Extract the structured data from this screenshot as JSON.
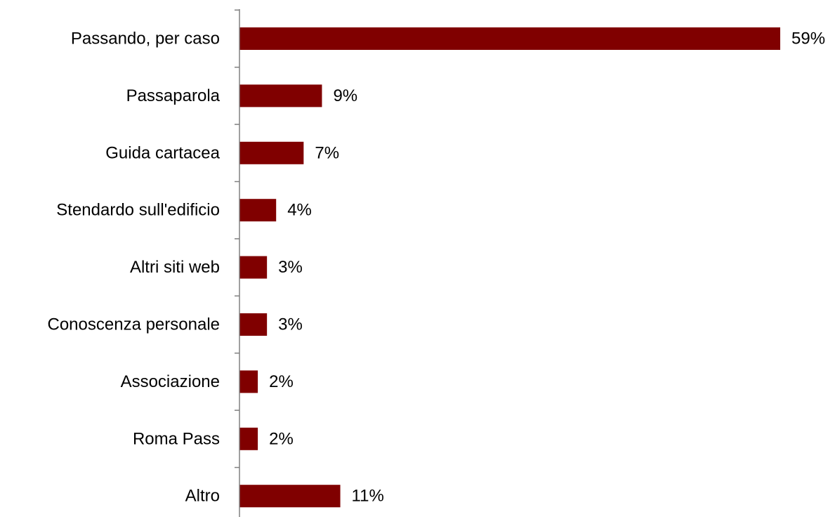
{
  "chart_data": {
    "type": "bar",
    "orientation": "horizontal",
    "categories": [
      "Passando, per caso",
      "Passaparola",
      "Guida cartacea",
      "Stendardo sull'edificio",
      "Altri siti web",
      "Conoscenza personale",
      "Associazione",
      "Roma Pass",
      "Altro"
    ],
    "values": [
      59,
      9,
      7,
      4,
      3,
      3,
      2,
      2,
      11
    ],
    "value_labels": [
      "59%",
      "9%",
      "7%",
      "4%",
      "3%",
      "3%",
      "2%",
      "2%",
      "11%"
    ],
    "title": "",
    "xlabel": "",
    "ylabel": "",
    "xlim": [
      0,
      59
    ],
    "grid": false,
    "legend": "none",
    "bar_color": "#800000",
    "axis_color": "#808080"
  }
}
